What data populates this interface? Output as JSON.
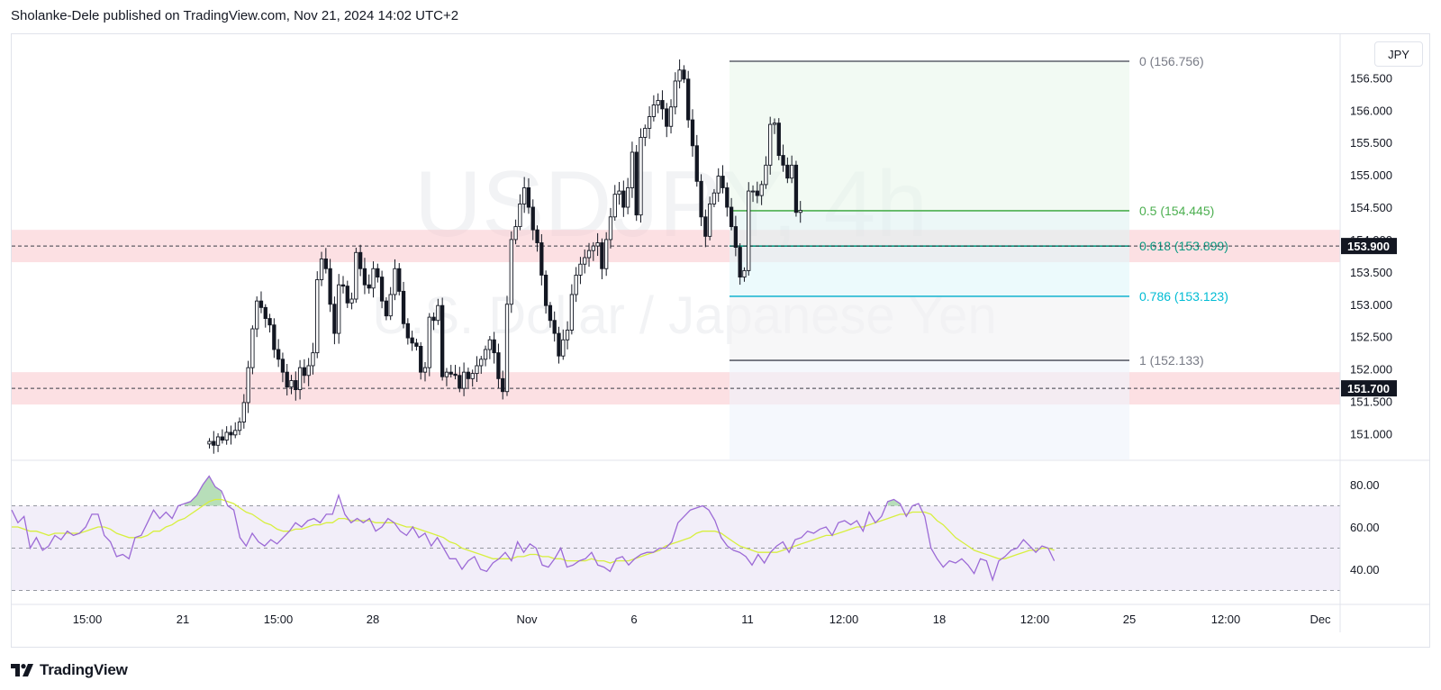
{
  "header": {
    "text": "Sholanke-Dele published on TradingView.com, Nov 21, 2024 14:02 UTC+2"
  },
  "footer": {
    "brand": "TradingView",
    "logo_icon": "tradingview-logo-icon"
  },
  "watermark": {
    "symbol": "USDJPY, 4h",
    "description": "U.S. Dollar / Japanese Yen"
  },
  "currency_label": "JPY",
  "colors": {
    "zone": "#f9c6cc",
    "fib_green": "#4caf50",
    "fib_teal": "#089981",
    "fib_cyan": "#00bcd4",
    "fib_gray": "#787b86",
    "rsi_line": "#9c6ad6",
    "rsi_ma": "#d7ef3e",
    "rsi_band": "#ede7f6"
  },
  "chart_data": [
    {
      "type": "candlestick",
      "symbol": "USDJPY",
      "timeframe": "4h",
      "ylim": [
        150.7,
        157.0
      ],
      "y_ticks": [
        "156.500",
        "156.000",
        "155.500",
        "155.000",
        "154.500",
        "154.000",
        "153.500",
        "153.000",
        "152.500",
        "152.000",
        "151.500",
        "151.000"
      ],
      "x_ticks": [
        "15:00",
        "21",
        "15:00",
        "28",
        "Nov",
        "6",
        "11",
        "12:00",
        "18",
        "12:00",
        "25",
        "12:00",
        "Dec"
      ],
      "closes": [
        150.88,
        150.82,
        150.95,
        150.9,
        151.02,
        150.98,
        151.05,
        151.18,
        151.48,
        152.02,
        152.62,
        153.05,
        152.95,
        152.78,
        152.68,
        152.3,
        152.15,
        151.95,
        151.72,
        151.82,
        151.68,
        152.02,
        151.9,
        152.05,
        152.25,
        153.38,
        153.7,
        153.55,
        153.0,
        152.55,
        153.3,
        153.28,
        153.02,
        153.08,
        153.8,
        153.55,
        153.3,
        153.25,
        153.55,
        153.42,
        153.05,
        152.82,
        153.15,
        153.55,
        153.2,
        152.7,
        152.48,
        152.4,
        152.35,
        151.95,
        152.02,
        152.8,
        152.75,
        152.98,
        151.88,
        151.95,
        151.92,
        151.9,
        151.7,
        151.95,
        151.85,
        151.93,
        152.05,
        152.15,
        152.3,
        152.45,
        152.25,
        151.85,
        151.65,
        153.0,
        154.0,
        154.2,
        154.55,
        154.8,
        154.5,
        154.15,
        153.95,
        153.45,
        152.98,
        152.75,
        152.55,
        152.2,
        152.45,
        152.6,
        153.15,
        153.45,
        153.62,
        153.72,
        153.83,
        153.9,
        153.95,
        153.55,
        154.0,
        154.35,
        154.7,
        154.75,
        154.5,
        154.8,
        155.35,
        154.38,
        155.58,
        155.72,
        155.9,
        156.08,
        156.15,
        156.02,
        155.75,
        156.05,
        156.45,
        156.62,
        156.48,
        155.85,
        155.45,
        154.9,
        154.35,
        154.05,
        154.55,
        154.72,
        154.98,
        154.8,
        154.5,
        154.2,
        153.88,
        153.42,
        153.52,
        154.75,
        154.75,
        154.68,
        154.85,
        155.15,
        155.78,
        155.8,
        155.3,
        155.15,
        154.95,
        155.15,
        154.42,
        154.45
      ],
      "horizontal_levels": [
        {
          "label": "153.900",
          "price": 153.9
        },
        {
          "label": "151.700",
          "price": 151.7
        }
      ],
      "zones": [
        {
          "from": 153.65,
          "to": 154.15
        },
        {
          "from": 151.45,
          "to": 151.95
        }
      ],
      "fib_retracement": {
        "high": 156.756,
        "low": 152.133,
        "levels": [
          {
            "ratio": "0",
            "price": 156.756,
            "label": "0 (156.756)"
          },
          {
            "ratio": "0.5",
            "price": 154.445,
            "label": "0.5 (154.445)"
          },
          {
            "ratio": "0.618",
            "price": 153.899,
            "label": "0.618 (153.899)"
          },
          {
            "ratio": "0.786",
            "price": 153.123,
            "label": "0.786 (153.123)"
          },
          {
            "ratio": "1",
            "price": 152.133,
            "label": "1 (152.133)"
          }
        ]
      }
    },
    {
      "type": "line",
      "indicator": "RSI",
      "ylim": [
        25,
        87
      ],
      "y_ticks": [
        "80.00",
        "60.00",
        "40.00"
      ],
      "bands": [
        70,
        50,
        30
      ],
      "series": [
        {
          "values": [
            68,
            62,
            65,
            50,
            55,
            49,
            51,
            56,
            54,
            58,
            56,
            57,
            60,
            66,
            66,
            56,
            53,
            46,
            47,
            45,
            55,
            56,
            62,
            68,
            64,
            67,
            64,
            70,
            71,
            72,
            75,
            80,
            84,
            79,
            77,
            70,
            68,
            55,
            51,
            57,
            53,
            51,
            54,
            52,
            55,
            58,
            62,
            60,
            63,
            64,
            62,
            66,
            66,
            75,
            66,
            62,
            64,
            62,
            64,
            58,
            60,
            64,
            62,
            58,
            56,
            60,
            55,
            57,
            51,
            55,
            50,
            45,
            45,
            40,
            44,
            46,
            40,
            39,
            43,
            45,
            48,
            44,
            53,
            48,
            52,
            50,
            42,
            41,
            45,
            50,
            41,
            42,
            44,
            45,
            48,
            42,
            41,
            39,
            45,
            46,
            42,
            45,
            47,
            48,
            48,
            50,
            50,
            53,
            62,
            65,
            68,
            69,
            70,
            68,
            63,
            55,
            51,
            49,
            48,
            46,
            42,
            47,
            43,
            48,
            51,
            53,
            48,
            54,
            55,
            58,
            57,
            59,
            60,
            56,
            62,
            63,
            61,
            63,
            58,
            67,
            62,
            65,
            72,
            73,
            71,
            65,
            70,
            71,
            65,
            50,
            45,
            41,
            44,
            43,
            45,
            42,
            38,
            45,
            44,
            35,
            44,
            46,
            49,
            50,
            54,
            51,
            48,
            51,
            50,
            44
          ]
        },
        {
          "values": [
            60,
            60,
            59,
            58,
            58,
            57,
            56,
            57,
            57,
            57,
            57,
            57,
            58,
            59,
            60,
            60,
            59,
            57,
            56,
            55,
            55,
            55,
            56,
            58,
            58,
            60,
            61,
            63,
            64,
            66,
            68,
            70,
            72,
            73,
            73,
            72,
            71,
            69,
            67,
            66,
            64,
            62,
            61,
            59,
            58,
            58,
            59,
            59,
            60,
            61,
            61,
            62,
            62,
            64,
            64,
            63,
            63,
            63,
            63,
            62,
            62,
            62,
            62,
            61,
            60,
            60,
            59,
            58,
            57,
            56,
            55,
            53,
            52,
            50,
            49,
            48,
            47,
            46,
            45,
            45,
            45,
            45,
            46,
            46,
            47,
            47,
            46,
            46,
            45,
            45,
            44,
            44,
            44,
            44,
            45,
            44,
            44,
            43,
            44,
            44,
            44,
            45,
            46,
            47,
            48,
            49,
            51,
            52,
            53,
            54,
            55,
            57,
            58,
            58,
            58,
            57,
            55,
            53,
            51,
            50,
            49,
            48,
            48,
            48,
            48,
            49,
            50,
            51,
            52,
            53,
            54,
            55,
            56,
            56,
            57,
            58,
            59,
            60,
            60,
            61,
            62,
            63,
            64,
            65,
            66,
            66,
            67,
            67,
            67,
            66,
            63,
            61,
            58,
            55,
            53,
            51,
            49,
            48,
            47,
            46,
            45,
            45,
            46,
            47,
            48,
            49,
            49,
            50,
            50,
            49
          ]
        }
      ]
    }
  ]
}
